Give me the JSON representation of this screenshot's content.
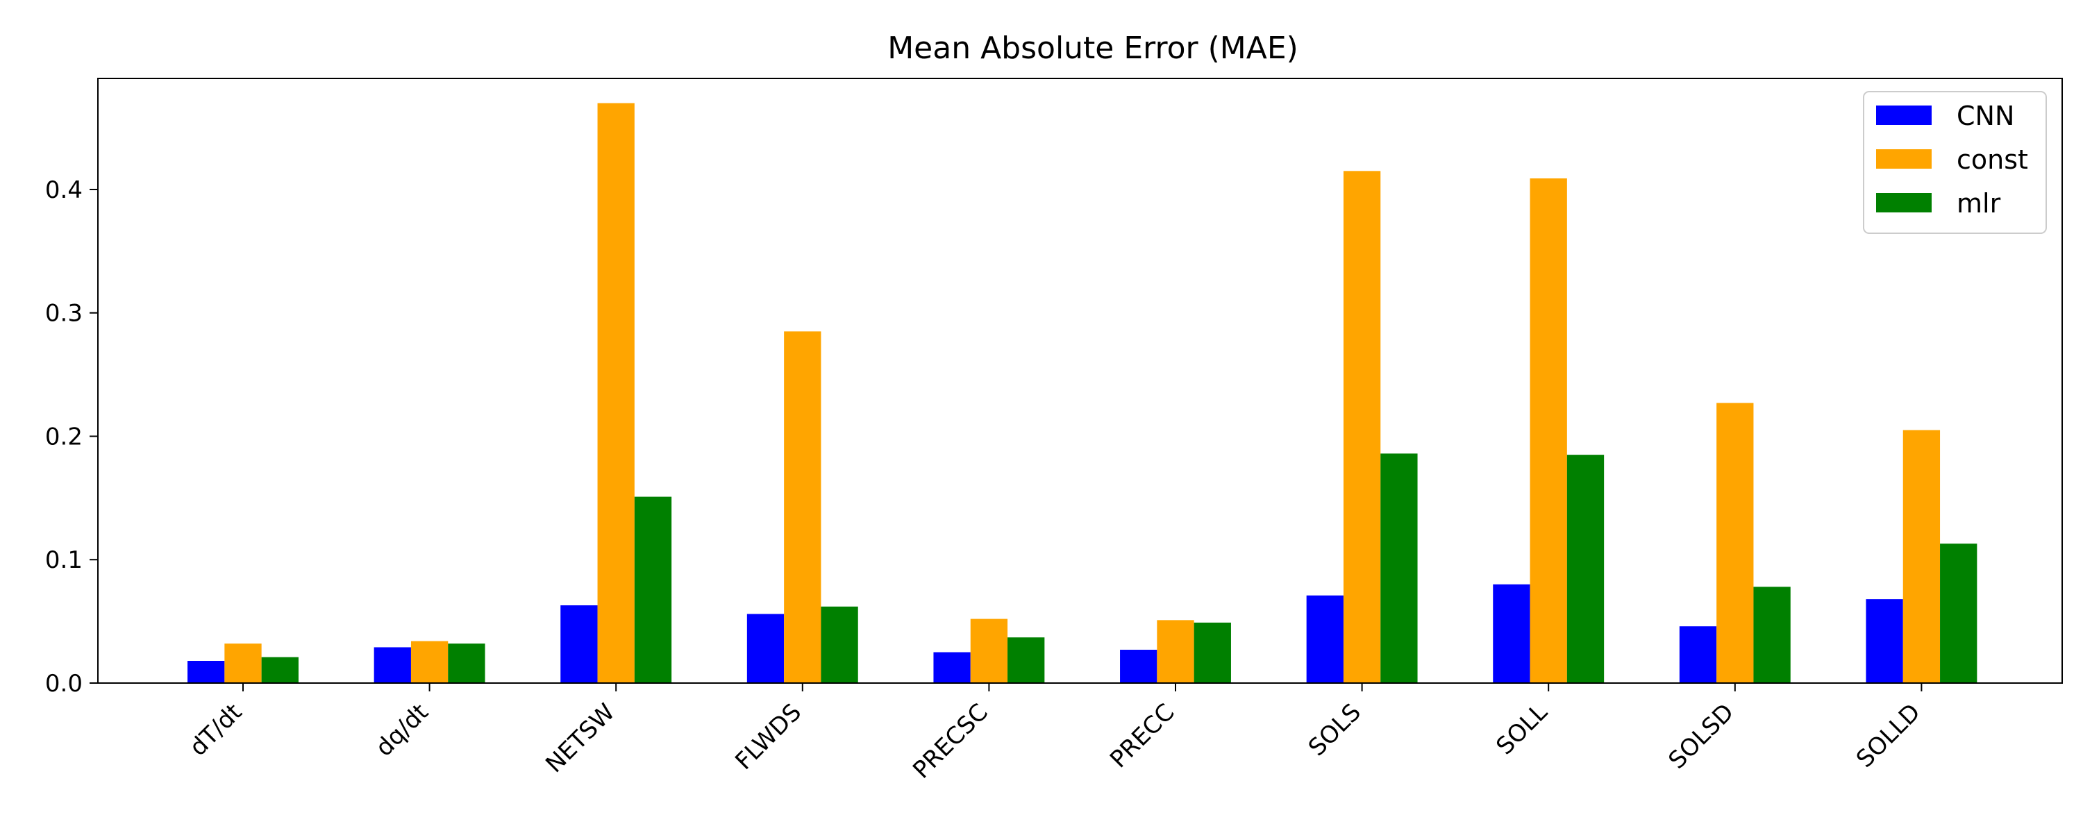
{
  "chart_data": {
    "type": "bar",
    "title": "Mean Absolute Error (MAE)",
    "xlabel": "",
    "ylabel": "",
    "categories": [
      "dT/dt",
      "dq/dt",
      "NETSW",
      "FLWDS",
      "PRECSC",
      "PRECC",
      "SOLS",
      "SOLL",
      "SOLSD",
      "SOLLD"
    ],
    "series": [
      {
        "name": "CNN",
        "color": "#0000ff",
        "values": [
          0.018,
          0.029,
          0.063,
          0.056,
          0.025,
          0.027,
          0.071,
          0.08,
          0.046,
          0.068
        ]
      },
      {
        "name": "const",
        "color": "#ffa500",
        "values": [
          0.032,
          0.034,
          0.47,
          0.285,
          0.052,
          0.051,
          0.415,
          0.409,
          0.227,
          0.205
        ]
      },
      {
        "name": "mlr",
        "color": "#008000",
        "values": [
          0.021,
          0.032,
          0.151,
          0.062,
          0.037,
          0.049,
          0.186,
          0.185,
          0.078,
          0.113
        ]
      }
    ],
    "ylim": [
      0,
      0.49
    ],
    "yticks": [
      0.0,
      0.1,
      0.2,
      0.3,
      0.4
    ],
    "ytick_labels": [
      "0.0",
      "0.1",
      "0.2",
      "0.3",
      "0.4"
    ],
    "grid": false,
    "legend_position": "top-right"
  }
}
